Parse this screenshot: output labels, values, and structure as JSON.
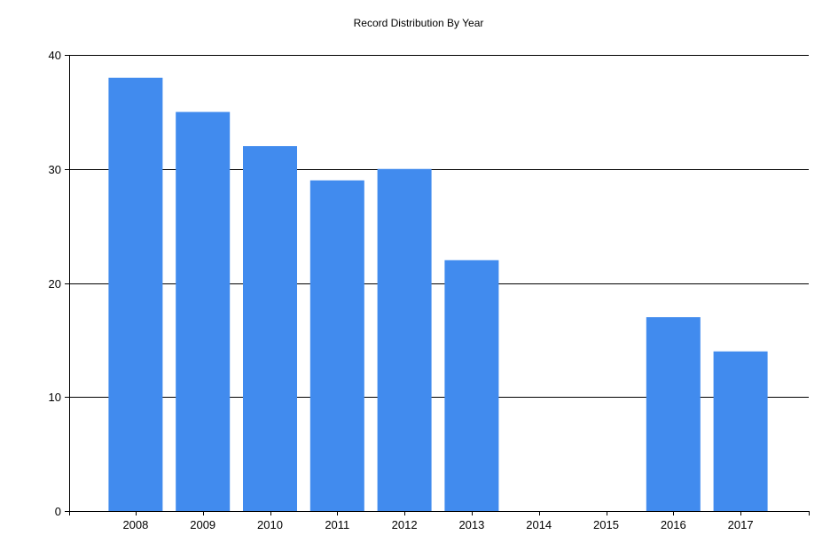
{
  "chart_data": {
    "type": "bar",
    "title": "Record Distribution By Year",
    "xlabel": "",
    "ylabel": "",
    "categories": [
      "2008",
      "2009",
      "2010",
      "2011",
      "2012",
      "2013",
      "2014",
      "2015",
      "2016",
      "2017"
    ],
    "values": [
      38,
      35,
      32,
      29,
      30,
      22,
      0,
      0,
      17,
      14
    ],
    "ylim": [
      0,
      40
    ],
    "yticks": [
      0,
      10,
      20,
      30,
      40
    ],
    "grid": "horizontal",
    "legend": "none",
    "bar_color": "#418bee"
  }
}
